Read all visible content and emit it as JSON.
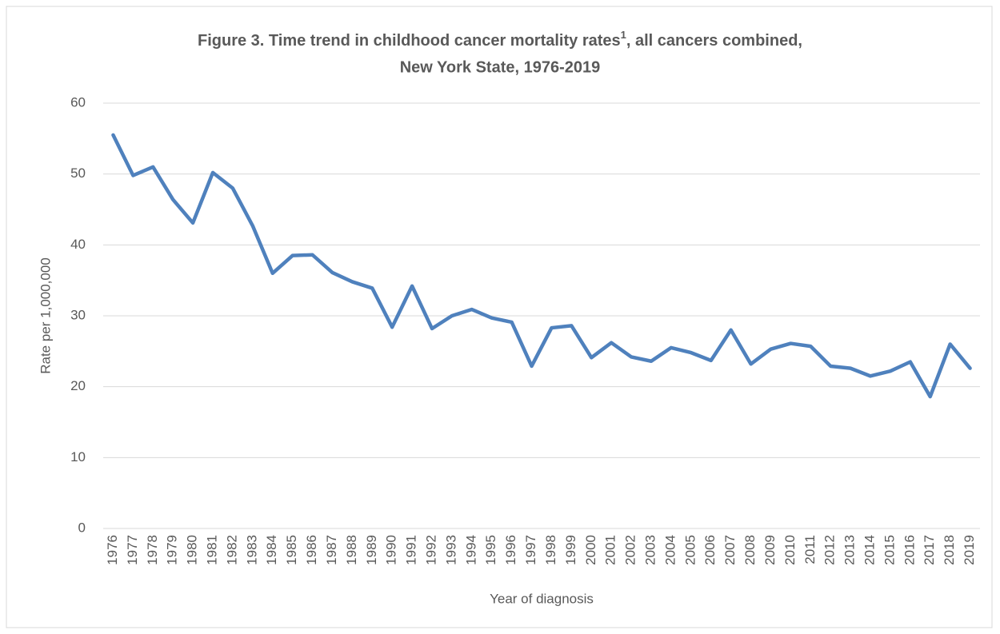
{
  "chart_data": {
    "type": "line",
    "title": [
      "Figure 3. Time trend in childhood cancer mortality rates",
      "1",
      ", all cancers combined,",
      "New York State, 1976-2019"
    ],
    "x_label": "Year of diagnosis",
    "y_label": "Rate per 1,000,000",
    "categories": [
      "1976",
      "1977",
      "1978",
      "1979",
      "1980",
      "1981",
      "1982",
      "1983",
      "1984",
      "1985",
      "1986",
      "1987",
      "1988",
      "1989",
      "1990",
      "1991",
      "1992",
      "1993",
      "1994",
      "1995",
      "1996",
      "1997",
      "1998",
      "1999",
      "2000",
      "2001",
      "2002",
      "2003",
      "2004",
      "2005",
      "2006",
      "2007",
      "2008",
      "2009",
      "2010",
      "2011",
      "2012",
      "2013",
      "2014",
      "2015",
      "2016",
      "2017",
      "2018",
      "2019"
    ],
    "series": [
      {
        "color": "#4f81bd",
        "values": [
          55.5,
          49.8,
          51.0,
          46.4,
          43.1,
          50.2,
          48.0,
          42.7,
          36.0,
          38.5,
          38.6,
          36.1,
          34.8,
          33.9,
          28.4,
          34.2,
          28.2,
          30.0,
          30.9,
          29.7,
          29.1,
          22.9,
          28.3,
          28.6,
          24.1,
          26.2,
          24.2,
          23.6,
          25.5,
          24.8,
          23.7,
          28.0,
          23.2,
          25.3,
          26.1,
          25.7,
          22.9,
          22.6,
          21.5,
          22.2,
          23.5,
          18.6,
          26.0,
          22.6
        ]
      }
    ],
    "ylim": [
      0,
      60
    ],
    "yticks": [
      0,
      10,
      20,
      30,
      40,
      50,
      60
    ],
    "grid": true
  }
}
